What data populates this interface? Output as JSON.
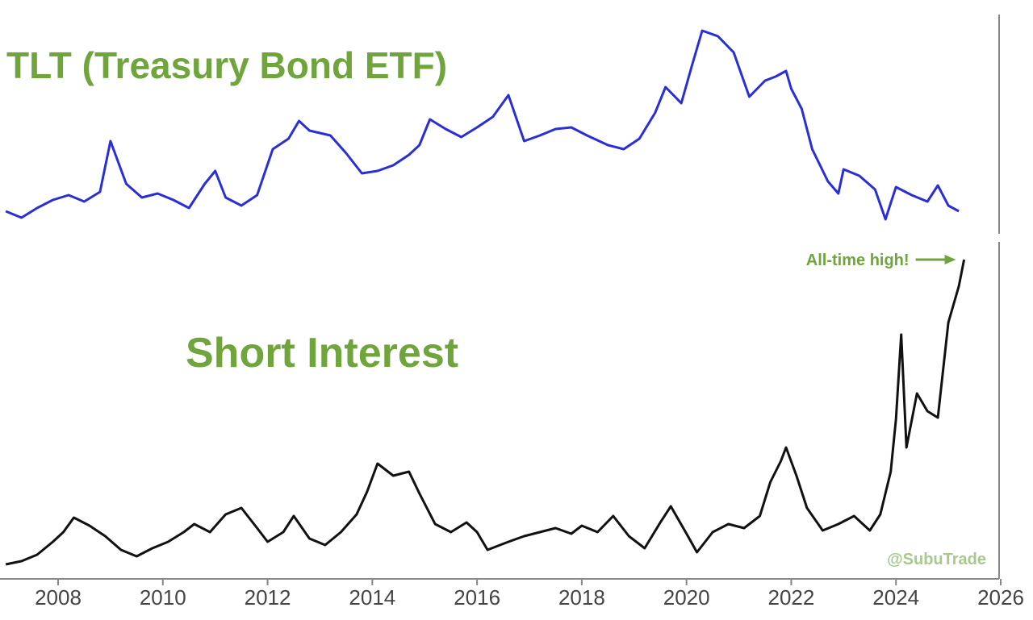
{
  "colors": {
    "accent_green": "#6fa53c",
    "tlt_line": "#2a2ed6",
    "short_interest_line": "#111111",
    "axis": "#888888"
  },
  "chart_data": [
    {
      "type": "line",
      "title": "TLT (Treasury Bond ETF)",
      "x_axis": "date",
      "xlim": [
        2007.0,
        2026.0
      ],
      "y_scale_shown": false,
      "grid": false,
      "series": [
        {
          "name": "TLT (Treasury Bond ETF)",
          "color": "#2a2ed6",
          "points": [
            [
              2007.0,
              262
            ],
            [
              2007.3,
              270
            ],
            [
              2007.6,
              258
            ],
            [
              2007.9,
              248
            ],
            [
              2008.2,
              242
            ],
            [
              2008.5,
              250
            ],
            [
              2008.8,
              238
            ],
            [
              2009.0,
              175
            ],
            [
              2009.3,
              228
            ],
            [
              2009.6,
              245
            ],
            [
              2009.9,
              240
            ],
            [
              2010.2,
              248
            ],
            [
              2010.5,
              258
            ],
            [
              2010.8,
              228
            ],
            [
              2011.0,
              212
            ],
            [
              2011.2,
              245
            ],
            [
              2011.5,
              255
            ],
            [
              2011.8,
              242
            ],
            [
              2012.1,
              185
            ],
            [
              2012.4,
              172
            ],
            [
              2012.6,
              150
            ],
            [
              2012.8,
              162
            ],
            [
              2013.2,
              168
            ],
            [
              2013.5,
              190
            ],
            [
              2013.8,
              215
            ],
            [
              2014.1,
              212
            ],
            [
              2014.4,
              205
            ],
            [
              2014.7,
              192
            ],
            [
              2014.9,
              180
            ],
            [
              2015.1,
              148
            ],
            [
              2015.4,
              160
            ],
            [
              2015.7,
              170
            ],
            [
              2016.0,
              158
            ],
            [
              2016.3,
              145
            ],
            [
              2016.6,
              118
            ],
            [
              2016.9,
              175
            ],
            [
              2017.2,
              168
            ],
            [
              2017.5,
              160
            ],
            [
              2017.8,
              158
            ],
            [
              2018.1,
              168
            ],
            [
              2018.5,
              180
            ],
            [
              2018.8,
              185
            ],
            [
              2019.1,
              172
            ],
            [
              2019.4,
              140
            ],
            [
              2019.6,
              108
            ],
            [
              2019.9,
              128
            ],
            [
              2020.1,
              82
            ],
            [
              2020.3,
              38
            ],
            [
              2020.6,
              45
            ],
            [
              2020.9,
              65
            ],
            [
              2021.2,
              120
            ],
            [
              2021.5,
              100
            ],
            [
              2021.7,
              95
            ],
            [
              2021.9,
              88
            ],
            [
              2022.0,
              110
            ],
            [
              2022.2,
              135
            ],
            [
              2022.4,
              185
            ],
            [
              2022.7,
              225
            ],
            [
              2022.9,
              240
            ],
            [
              2023.0,
              210
            ],
            [
              2023.3,
              218
            ],
            [
              2023.6,
              235
            ],
            [
              2023.8,
              272
            ],
            [
              2024.0,
              232
            ],
            [
              2024.3,
              242
            ],
            [
              2024.6,
              250
            ],
            [
              2024.8,
              230
            ],
            [
              2025.0,
              255
            ],
            [
              2025.2,
              262
            ]
          ]
        }
      ]
    },
    {
      "type": "line",
      "title": "Short Interest",
      "x_axis": "date",
      "xlim": [
        2007.0,
        2026.0
      ],
      "y_scale_shown": false,
      "grid": false,
      "xticks": [
        "2008",
        "2010",
        "2012",
        "2014",
        "2016",
        "2018",
        "2020",
        "2022",
        "2024",
        "2026"
      ],
      "series": [
        {
          "name": "Short Interest",
          "color": "#111111",
          "points": [
            [
              2007.0,
              700
            ],
            [
              2007.3,
              696
            ],
            [
              2007.6,
              688
            ],
            [
              2007.9,
              672
            ],
            [
              2008.1,
              660
            ],
            [
              2008.3,
              642
            ],
            [
              2008.6,
              652
            ],
            [
              2008.9,
              665
            ],
            [
              2009.2,
              682
            ],
            [
              2009.5,
              690
            ],
            [
              2009.8,
              680
            ],
            [
              2010.1,
              672
            ],
            [
              2010.4,
              660
            ],
            [
              2010.6,
              650
            ],
            [
              2010.9,
              660
            ],
            [
              2011.2,
              638
            ],
            [
              2011.5,
              630
            ],
            [
              2011.8,
              655
            ],
            [
              2012.0,
              672
            ],
            [
              2012.3,
              660
            ],
            [
              2012.5,
              640
            ],
            [
              2012.8,
              668
            ],
            [
              2013.1,
              676
            ],
            [
              2013.4,
              660
            ],
            [
              2013.7,
              638
            ],
            [
              2013.9,
              610
            ],
            [
              2014.1,
              575
            ],
            [
              2014.4,
              590
            ],
            [
              2014.7,
              585
            ],
            [
              2014.9,
              612
            ],
            [
              2015.2,
              650
            ],
            [
              2015.5,
              660
            ],
            [
              2015.8,
              648
            ],
            [
              2016.0,
              660
            ],
            [
              2016.2,
              682
            ],
            [
              2016.6,
              672
            ],
            [
              2016.9,
              665
            ],
            [
              2017.2,
              660
            ],
            [
              2017.5,
              655
            ],
            [
              2017.8,
              662
            ],
            [
              2018.0,
              652
            ],
            [
              2018.3,
              660
            ],
            [
              2018.6,
              640
            ],
            [
              2018.9,
              665
            ],
            [
              2019.2,
              680
            ],
            [
              2019.5,
              648
            ],
            [
              2019.7,
              628
            ],
            [
              2020.0,
              662
            ],
            [
              2020.2,
              685
            ],
            [
              2020.5,
              660
            ],
            [
              2020.8,
              650
            ],
            [
              2021.1,
              655
            ],
            [
              2021.4,
              640
            ],
            [
              2021.6,
              598
            ],
            [
              2021.8,
              572
            ],
            [
              2021.9,
              555
            ],
            [
              2022.1,
              590
            ],
            [
              2022.3,
              630
            ],
            [
              2022.6,
              658
            ],
            [
              2022.9,
              650
            ],
            [
              2023.2,
              640
            ],
            [
              2023.5,
              658
            ],
            [
              2023.7,
              638
            ],
            [
              2023.9,
              585
            ],
            [
              2024.0,
              520
            ],
            [
              2024.1,
              415
            ],
            [
              2024.2,
              555
            ],
            [
              2024.4,
              488
            ],
            [
              2024.6,
              510
            ],
            [
              2024.8,
              518
            ],
            [
              2025.0,
              400
            ],
            [
              2025.2,
              355
            ],
            [
              2025.3,
              322
            ]
          ]
        }
      ],
      "annotations": [
        {
          "text": "All-time high!",
          "x": 2025.3,
          "color": "#6fa53c"
        }
      ]
    }
  ],
  "watermark": "@SubuTrade"
}
